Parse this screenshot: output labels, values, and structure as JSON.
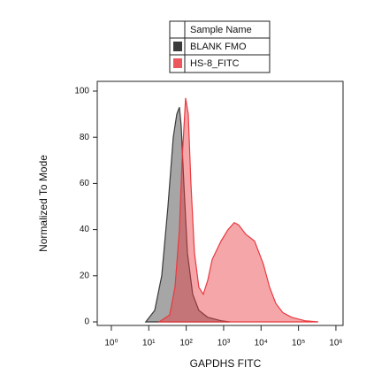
{
  "chart_data": {
    "type": "histogram-overlay",
    "x_label": "GAPDHS FITC",
    "y_label": "Normalized To Mode",
    "legend_title": "Sample Name",
    "xscale": "log",
    "xlim": [
      0.42,
      1550000
    ],
    "ylim": [
      0,
      100
    ],
    "xticks": [
      {
        "value": 1,
        "label": "10⁰"
      },
      {
        "value": 10,
        "label": "10¹"
      },
      {
        "value": 100,
        "label": "10²"
      },
      {
        "value": 1000,
        "label": "10³"
      },
      {
        "value": 10000,
        "label": "10⁴"
      },
      {
        "value": 100000,
        "label": "10⁵"
      },
      {
        "value": 1000000,
        "label": "10⁶"
      }
    ],
    "yticks": [
      0,
      20,
      40,
      60,
      80,
      100
    ],
    "series": [
      {
        "name": "BLANK FMO",
        "color": "#3a3a3a",
        "x": [
          8.3,
          14.4,
          22.2,
          32.5,
          45.1,
          56,
          65.9,
          73.5,
          86.5,
          107.6,
          149,
          218,
          376,
          850,
          1466
        ],
        "values": [
          0,
          5,
          20,
          50,
          80,
          90,
          93,
          85,
          60,
          30,
          12,
          5,
          2,
          0.5,
          0
        ]
      },
      {
        "name": "HS-8_FITC",
        "color": "#e8393f",
        "x": [
          18.9,
          36.2,
          50.2,
          65.9,
          77.6,
          96.4,
          113.5,
          133.7,
          166,
          218,
          286,
          376,
          493,
          850,
          1313,
          1923,
          2523,
          3899,
          6714,
          11560,
          16940,
          24770,
          38280,
          65920,
          148900,
          337300
        ],
        "values": [
          0,
          3,
          15,
          40,
          70,
          97,
          90,
          60,
          30,
          15,
          12,
          18,
          27,
          35,
          40,
          43,
          42,
          38,
          35,
          25,
          15,
          8,
          4,
          2,
          0.5,
          0
        ]
      }
    ]
  }
}
